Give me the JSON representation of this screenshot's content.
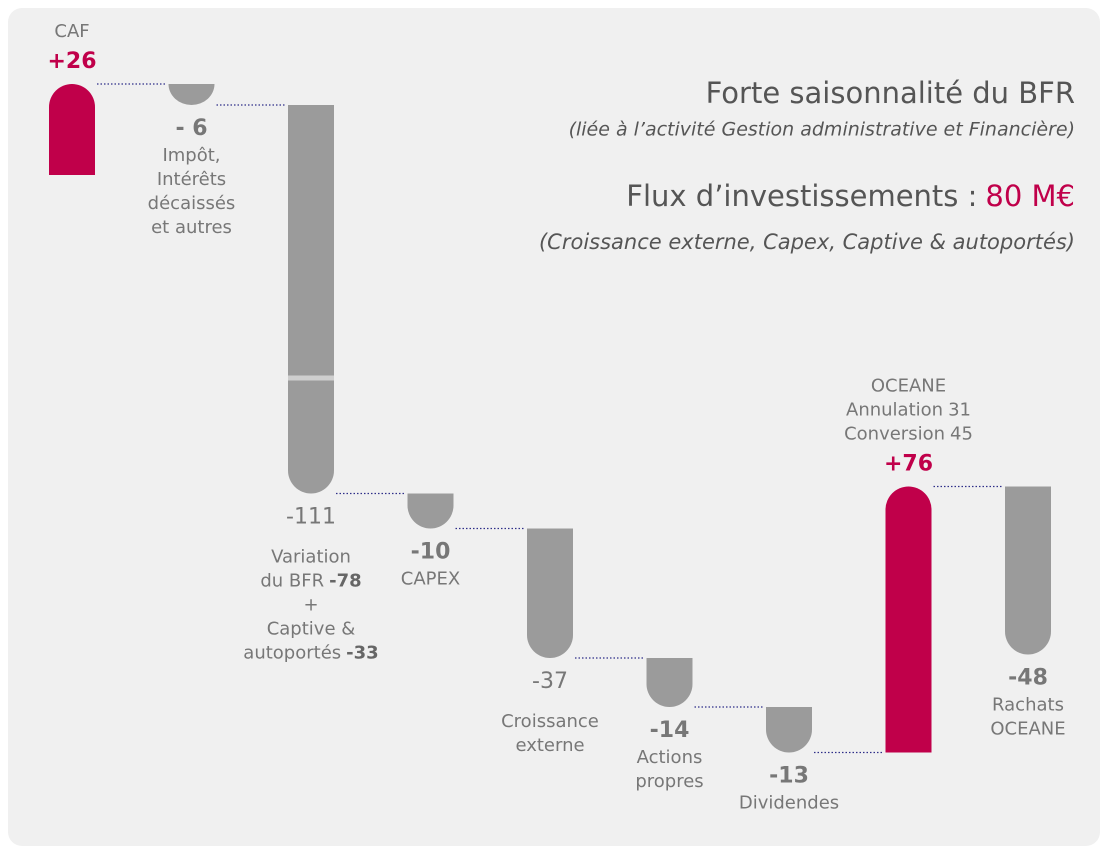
{
  "chart_data": {
    "type": "waterfall",
    "title": "Forte saisonnalité du BFR",
    "subtitle": "(liée à l’activité Gestion administrative et Financière)",
    "investment_label": "Flux d’investissements :",
    "investment_value": "80 M€",
    "investment_note": "(Croissance externe, Capex, Captive & autoportés)",
    "categories": [
      [
        "CAF"
      ],
      [
        "Impôt,",
        "Intérêts",
        "décaissés",
        "et autres"
      ],
      [
        "Variation",
        {
          "text": "du BFR",
          "value": -78,
          "bold": true
        },
        "+",
        "Captive &",
        {
          "text": "autoportés",
          "value": -33,
          "bold": true
        }
      ],
      [
        "CAPEX"
      ],
      [
        "Croissance",
        "externe"
      ],
      [
        "Actions",
        "propres"
      ],
      [
        "Dividendes"
      ],
      [
        "OCEANE",
        {
          "text": "Annulation",
          "value": 31,
          "bold": false
        },
        {
          "text": "Conversion",
          "value": 45,
          "bold": false
        }
      ],
      [
        "Rachats",
        "OCEANE"
      ]
    ],
    "values": [
      26,
      -6,
      -111,
      -10,
      -37,
      -14,
      -13,
      76,
      -48
    ],
    "value_labels": [
      "+26",
      "- 6",
      "-111",
      "-10",
      "-37",
      "-14",
      "-13",
      "+76",
      "-48"
    ],
    "value_label_bold": [
      true,
      true,
      false,
      true,
      false,
      true,
      true,
      true,
      true
    ],
    "positive_color": "#c0004a",
    "negative_color": "#9b9b9b",
    "connector_color": "#2e2e88"
  }
}
